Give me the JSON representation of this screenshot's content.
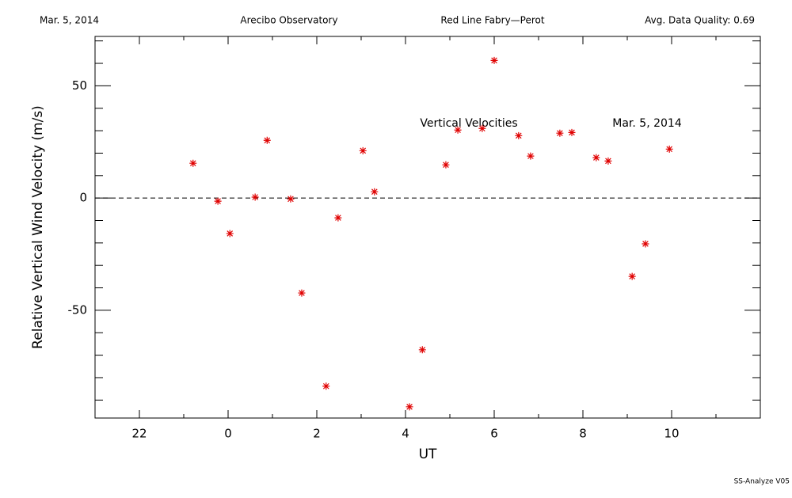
{
  "header": [
    "Mar. 5, 2014",
    "Arecibo Observatory",
    "Red Line Fabry—Perot",
    "Avg. Data Quality: 0.69"
  ],
  "footer": "SS-Analyze V05",
  "chart_data": {
    "type": "scatter",
    "xlabel": "UT",
    "ylabel": "Relative Vertical Wind Velocity (m/s)",
    "annotations": [
      "Vertical Velocities",
      "Mar. 5, 2014"
    ],
    "xlim": [
      -3,
      12
    ],
    "xticks": [
      {
        "value": -2,
        "label": "22"
      },
      0,
      2,
      4,
      6,
      8,
      10
    ],
    "ylim": [
      -98,
      72
    ],
    "yticks": [
      -50,
      0,
      50
    ],
    "hline": 0,
    "series": [
      {
        "name": "Vertical Velocities",
        "color": "#e00000",
        "x": [
          -0.79,
          -0.23,
          0.04,
          0.61,
          0.88,
          1.41,
          1.66,
          2.21,
          2.48,
          3.04,
          3.3,
          4.09,
          4.38,
          4.91,
          5.18,
          5.73,
          6.0,
          6.55,
          6.82,
          7.48,
          7.75,
          8.3,
          8.57,
          9.11,
          9.41,
          9.95
        ],
        "values": [
          15.5,
          -1.4,
          -15.8,
          0.4,
          25.7,
          -0.4,
          -42.3,
          -83.8,
          -8.8,
          21.1,
          2.8,
          -93.0,
          -67.6,
          14.8,
          30.3,
          31.0,
          61.3,
          27.8,
          18.7,
          28.9,
          29.2,
          18.0,
          16.5,
          -34.9,
          -20.4,
          21.8
        ]
      }
    ]
  }
}
